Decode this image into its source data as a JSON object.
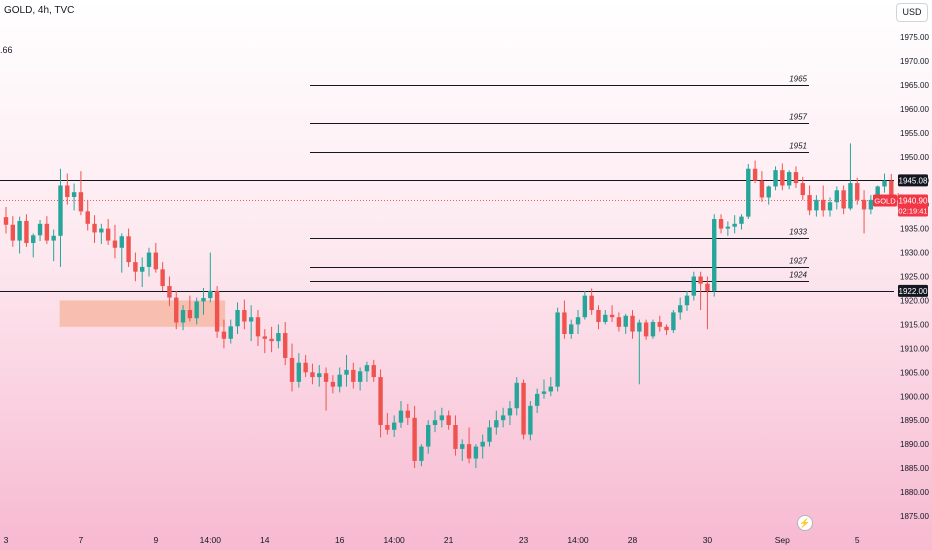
{
  "header": {
    "title": "GOLD, 4h, TVC",
    "left_value": ".66"
  },
  "currency_button": {
    "label": "USD"
  },
  "icons": {
    "bolt": "lightning-bolt-icon"
  },
  "colors": {
    "up": "#26a69a",
    "down": "#ef5350",
    "level_line": "#131722",
    "zone": "#f7b9a5",
    "price_tag": "#f23645",
    "level_tag": "#131722"
  },
  "chart_data": {
    "type": "candlestick",
    "symbol": "GOLD",
    "timeframe": "4h",
    "source": "TVC",
    "currency": "USD",
    "ylim": [
      1872.5,
      1980
    ],
    "y_ticks": [
      "1875.00",
      "1880.00",
      "1885.00",
      "1890.00",
      "1895.00",
      "1900.00",
      "1905.00",
      "1910.00",
      "1915.00",
      "1920.00",
      "1925.00",
      "1930.00",
      "1935.00",
      "1940.00",
      "1945.00",
      "1950.00",
      "1955.00",
      "1960.00",
      "1965.00",
      "1970.00",
      "1975.00"
    ],
    "x_ticks": [
      {
        "label": "3",
        "index": 0
      },
      {
        "label": "7",
        "index": 11
      },
      {
        "label": "9",
        "index": 22
      },
      {
        "label": "14:00",
        "index": 30
      },
      {
        "label": "14",
        "index": 38
      },
      {
        "label": "16",
        "index": 49
      },
      {
        "label": "14:00",
        "index": 57
      },
      {
        "label": "21",
        "index": 65
      },
      {
        "label": "23",
        "index": 76
      },
      {
        "label": "14:00",
        "index": 84
      },
      {
        "label": "28",
        "index": 92
      },
      {
        "label": "30",
        "index": 103
      },
      {
        "label": "Sep",
        "index": 114
      },
      {
        "label": "5",
        "index": 125
      }
    ],
    "candles": [
      [
        1937.4,
        1939.5,
        1934.0,
        1935.8
      ],
      [
        1935.8,
        1937.6,
        1931.2,
        1932.5
      ],
      [
        1932.5,
        1937.5,
        1929.8,
        1936.6
      ],
      [
        1936.6,
        1938.0,
        1931.2,
        1932.0
      ],
      [
        1932.0,
        1934.0,
        1929.0,
        1933.6
      ],
      [
        1933.6,
        1936.8,
        1932.4,
        1936.0
      ],
      [
        1936.0,
        1937.6,
        1931.8,
        1932.5
      ],
      [
        1932.5,
        1934.8,
        1928.2,
        1933.5
      ],
      [
        1933.5,
        1947.5,
        1927.0,
        1944.0
      ],
      [
        1944.0,
        1946.5,
        1940.0,
        1941.6
      ],
      [
        1941.6,
        1944.4,
        1938.8,
        1942.6
      ],
      [
        1942.6,
        1947.0,
        1937.8,
        1938.6
      ],
      [
        1938.6,
        1941.0,
        1934.6,
        1936.0
      ],
      [
        1936.0,
        1937.8,
        1932.0,
        1934.2
      ],
      [
        1934.2,
        1936.0,
        1931.8,
        1935.0
      ],
      [
        1935.0,
        1937.0,
        1931.6,
        1932.5
      ],
      [
        1932.5,
        1935.8,
        1928.8,
        1931.0
      ],
      [
        1931.0,
        1934.0,
        1925.8,
        1933.4
      ],
      [
        1933.4,
        1935.0,
        1927.0,
        1928.0
      ],
      [
        1928.0,
        1930.0,
        1924.0,
        1926.0
      ],
      [
        1926.0,
        1929.0,
        1922.8,
        1927.0
      ],
      [
        1927.0,
        1931.0,
        1925.0,
        1930.0
      ],
      [
        1930.0,
        1932.0,
        1925.8,
        1926.5
      ],
      [
        1926.5,
        1928.0,
        1922.0,
        1923.0
      ],
      [
        1923.0,
        1925.0,
        1918.8,
        1920.6
      ],
      [
        1920.6,
        1922.0,
        1914.0,
        1915.4
      ],
      [
        1915.4,
        1919.0,
        1913.8,
        1918.0
      ],
      [
        1918.0,
        1921.0,
        1915.6,
        1916.3
      ],
      [
        1916.3,
        1920.6,
        1915.0,
        1919.8
      ],
      [
        1919.8,
        1922.6,
        1917.0,
        1920.5
      ],
      [
        1920.5,
        1930.0,
        1919.6,
        1922.0
      ],
      [
        1922.0,
        1923.0,
        1912.2,
        1913.5
      ],
      [
        1913.5,
        1916.0,
        1910.0,
        1912.0
      ],
      [
        1912.0,
        1916.0,
        1911.0,
        1914.6
      ],
      [
        1914.6,
        1919.6,
        1913.0,
        1918.0
      ],
      [
        1918.0,
        1920.2,
        1914.0,
        1915.6
      ],
      [
        1915.6,
        1919.0,
        1911.5,
        1916.5
      ],
      [
        1916.5,
        1918.0,
        1910.5,
        1912.5
      ],
      [
        1912.5,
        1914.0,
        1909.0,
        1912.0
      ],
      [
        1912.0,
        1914.5,
        1909.2,
        1911.5
      ],
      [
        1911.5,
        1915.0,
        1910.0,
        1913.2
      ],
      [
        1913.2,
        1915.5,
        1906.5,
        1908.0
      ],
      [
        1908.0,
        1911.0,
        1901.0,
        1903.0
      ],
      [
        1903.0,
        1909.0,
        1901.8,
        1907.0
      ],
      [
        1907.0,
        1908.6,
        1904.0,
        1905.0
      ],
      [
        1905.0,
        1906.8,
        1902.5,
        1904.0
      ],
      [
        1904.0,
        1906.5,
        1902.0,
        1904.8
      ],
      [
        1904.8,
        1906.0,
        1897.0,
        1903.0
      ],
      [
        1903.0,
        1904.4,
        1900.6,
        1902.0
      ],
      [
        1902.0,
        1906.0,
        1900.8,
        1904.5
      ],
      [
        1904.5,
        1908.6,
        1902.0,
        1905.5
      ],
      [
        1905.5,
        1907.0,
        1901.6,
        1903.0
      ],
      [
        1903.0,
        1906.0,
        1901.2,
        1905.2
      ],
      [
        1905.2,
        1907.2,
        1903.0,
        1906.5
      ],
      [
        1906.5,
        1907.6,
        1903.0,
        1904.0
      ],
      [
        1904.0,
        1905.6,
        1891.4,
        1894.0
      ],
      [
        1894.0,
        1896.5,
        1892.0,
        1893.0
      ],
      [
        1893.0,
        1896.0,
        1891.5,
        1894.5
      ],
      [
        1894.5,
        1899.0,
        1893.4,
        1897.0
      ],
      [
        1897.0,
        1898.4,
        1894.0,
        1895.5
      ],
      [
        1895.5,
        1898.0,
        1885.0,
        1886.5
      ],
      [
        1886.5,
        1890.0,
        1885.4,
        1889.5
      ],
      [
        1889.5,
        1895.0,
        1888.0,
        1894.0
      ],
      [
        1894.0,
        1897.0,
        1892.5,
        1895.0
      ],
      [
        1895.0,
        1897.6,
        1893.5,
        1896.0
      ],
      [
        1896.0,
        1897.0,
        1893.0,
        1894.0
      ],
      [
        1894.0,
        1896.0,
        1887.6,
        1889.0
      ],
      [
        1889.0,
        1891.0,
        1886.5,
        1890.0
      ],
      [
        1890.0,
        1893.5,
        1886.0,
        1887.0
      ],
      [
        1887.0,
        1890.0,
        1885.0,
        1889.5
      ],
      [
        1889.5,
        1892.0,
        1887.0,
        1890.5
      ],
      [
        1890.5,
        1895.0,
        1889.5,
        1893.5
      ],
      [
        1893.5,
        1897.0,
        1892.0,
        1895.0
      ],
      [
        1895.0,
        1897.6,
        1893.5,
        1896.0
      ],
      [
        1896.0,
        1899.0,
        1894.0,
        1897.5
      ],
      [
        1897.5,
        1904.0,
        1896.0,
        1902.8
      ],
      [
        1902.8,
        1903.5,
        1891.0,
        1892.0
      ],
      [
        1892.0,
        1899.0,
        1890.8,
        1898.0
      ],
      [
        1898.0,
        1901.6,
        1896.5,
        1900.5
      ],
      [
        1900.5,
        1903.5,
        1899.5,
        1901.0
      ],
      [
        1901.0,
        1904.0,
        1900.0,
        1902.0
      ],
      [
        1902.0,
        1918.5,
        1901.0,
        1917.5
      ],
      [
        1917.5,
        1920.0,
        1912.0,
        1913.0
      ],
      [
        1913.0,
        1916.0,
        1912.0,
        1915.0
      ],
      [
        1915.0,
        1918.0,
        1913.0,
        1916.5
      ],
      [
        1916.5,
        1922.0,
        1916.0,
        1921.0
      ],
      [
        1921.0,
        1922.5,
        1917.0,
        1918.0
      ],
      [
        1918.0,
        1919.0,
        1914.0,
        1915.5
      ],
      [
        1915.5,
        1918.0,
        1915.0,
        1917.0
      ],
      [
        1917.0,
        1919.0,
        1915.5,
        1916.5
      ],
      [
        1916.5,
        1917.5,
        1913.5,
        1914.5
      ],
      [
        1914.5,
        1917.2,
        1913.0,
        1916.8
      ],
      [
        1916.8,
        1918.0,
        1912.0,
        1913.5
      ],
      [
        1913.5,
        1916.0,
        1902.5,
        1915.4
      ],
      [
        1915.4,
        1916.0,
        1911.8,
        1912.5
      ],
      [
        1912.5,
        1916.0,
        1912.0,
        1915.5
      ],
      [
        1915.5,
        1916.8,
        1913.5,
        1914.5
      ],
      [
        1914.5,
        1915.0,
        1912.8,
        1913.8
      ],
      [
        1913.8,
        1918.0,
        1913.2,
        1917.5
      ],
      [
        1917.5,
        1920.6,
        1916.0,
        1919.0
      ],
      [
        1919.0,
        1922.0,
        1917.8,
        1921.0
      ],
      [
        1921.0,
        1926.0,
        1920.0,
        1925.0
      ],
      [
        1925.0,
        1926.0,
        1918.0,
        1923.5
      ],
      [
        1923.5,
        1925.0,
        1914.0,
        1922.0
      ],
      [
        1922.0,
        1938.0,
        1920.8,
        1937.0
      ],
      [
        1937.0,
        1938.0,
        1934.0,
        1935.0
      ],
      [
        1935.0,
        1936.5,
        1933.5,
        1935.4
      ],
      [
        1935.4,
        1937.8,
        1934.0,
        1936.0
      ],
      [
        1936.0,
        1938.0,
        1934.8,
        1937.5
      ],
      [
        1937.5,
        1948.5,
        1937.0,
        1947.5
      ],
      [
        1947.5,
        1949.2,
        1944.5,
        1945.0
      ],
      [
        1945.0,
        1947.0,
        1940.6,
        1941.5
      ],
      [
        1941.5,
        1944.0,
        1940.0,
        1943.8
      ],
      [
        1943.8,
        1948.0,
        1943.0,
        1947.2
      ],
      [
        1947.2,
        1948.6,
        1943.0,
        1944.0
      ],
      [
        1944.0,
        1947.2,
        1943.2,
        1946.8
      ],
      [
        1946.8,
        1948.0,
        1943.5,
        1944.5
      ],
      [
        1944.5,
        1945.8,
        1941.0,
        1942.0
      ],
      [
        1942.0,
        1944.0,
        1937.8,
        1938.8
      ],
      [
        1938.8,
        1942.0,
        1937.5,
        1941.0
      ],
      [
        1941.0,
        1944.0,
        1937.5,
        1938.8
      ],
      [
        1938.8,
        1941.5,
        1937.5,
        1940.5
      ],
      [
        1940.5,
        1943.8,
        1939.0,
        1943.0
      ],
      [
        1943.0,
        1944.0,
        1938.0,
        1939.2
      ],
      [
        1939.2,
        1952.8,
        1938.8,
        1944.5
      ],
      [
        1944.5,
        1945.6,
        1940.0,
        1941.0
      ],
      [
        1941.0,
        1943.0,
        1934.0,
        1939.0
      ],
      [
        1939.0,
        1942.0,
        1938.0,
        1941.0
      ],
      [
        1941.0,
        1944.0,
        1940.0,
        1943.8
      ],
      [
        1943.8,
        1946.5,
        1942.5,
        1945.0
      ],
      [
        1945.0,
        1946.4,
        1940.6,
        1941.8
      ],
      [
        1941.8,
        1942.4,
        1939.6,
        1940.9
      ]
    ],
    "horizontal_levels": [
      {
        "value": 1965,
        "label": "1965",
        "span": "partial"
      },
      {
        "value": 1957,
        "label": "1957",
        "span": "partial"
      },
      {
        "value": 1951,
        "label": "1951",
        "span": "partial"
      },
      {
        "value": 1933,
        "label": "1933",
        "span": "partial"
      },
      {
        "value": 1927,
        "label": "1927",
        "span": "partial"
      },
      {
        "value": 1924,
        "label": "1924",
        "span": "partial"
      },
      {
        "value": 1945.08,
        "label": "1945.08",
        "span": "full"
      },
      {
        "value": 1922.0,
        "label": "1922.00",
        "span": "full"
      }
    ],
    "zone": {
      "from_index": 7,
      "to_index": 31,
      "low": 1914.5,
      "high": 1920.0
    },
    "current_price": {
      "value": 1940.9,
      "label": "1940.90",
      "symbol_tag": "GOLD",
      "countdown": "02:19:41"
    }
  }
}
